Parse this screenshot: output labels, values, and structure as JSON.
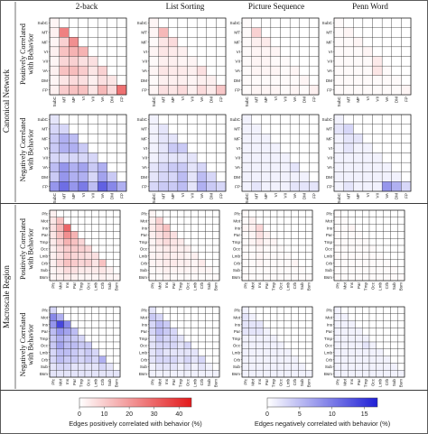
{
  "columns": [
    "2-back",
    "List Sorting",
    "Picture Sequence",
    "Penn Word"
  ],
  "groups": [
    "Canonical Network",
    "Macroscale Region"
  ],
  "row_labels": [
    "Positively Correlated with Behavior",
    "Negatively Correlated with Behavior"
  ],
  "network_labels": [
    "SubC",
    "MT",
    "MF",
    "VI",
    "VII",
    "VA",
    "DM",
    "FP"
  ],
  "region_labels": [
    "Pfc",
    "Mot",
    "Ins",
    "Par",
    "Tmp",
    "Occ",
    "Lmb",
    "Crb",
    "Sub",
    "Bsm"
  ],
  "colors": {
    "positive": "#e31a1c",
    "negative": "#1f1fd6"
  },
  "colorbars": {
    "positive": {
      "label": "Edges positively correlated with behavior (%)",
      "ticks": [
        0,
        10,
        20,
        30,
        40
      ],
      "max": 45
    },
    "negative": {
      "label": "Edges negatively correlated with behavior (%)",
      "ticks": [
        0,
        5,
        10,
        15
      ],
      "max": 17
    }
  },
  "chart_data": {
    "type": "heatmap",
    "description": "Lower-triangular matrices of the percent of edges between each pair of networks/regions correlated with behavior; values approximate.",
    "panels": [
      {
        "group": "Canonical Network",
        "sign": "positive",
        "task": "2-back",
        "matrix": [
          [
            2
          ],
          [
            3,
            25
          ],
          [
            2,
            9,
            22
          ],
          [
            3,
            12,
            15,
            15
          ],
          [
            2,
            8,
            9,
            6,
            6
          ],
          [
            3,
            12,
            13,
            10,
            5,
            9
          ],
          [
            2,
            5,
            7,
            6,
            3,
            6,
            5
          ],
          [
            3,
            10,
            12,
            12,
            5,
            14,
            7,
            28
          ]
        ]
      },
      {
        "group": "Canonical Network",
        "sign": "positive",
        "task": "List Sorting",
        "matrix": [
          [
            2
          ],
          [
            2,
            14
          ],
          [
            1,
            5,
            7
          ],
          [
            2,
            5,
            4,
            3
          ],
          [
            1,
            3,
            3,
            2,
            2
          ],
          [
            2,
            5,
            4,
            4,
            3,
            6
          ],
          [
            1,
            3,
            3,
            3,
            2,
            3,
            3
          ],
          [
            2,
            6,
            5,
            7,
            3,
            7,
            4,
            11
          ]
        ]
      },
      {
        "group": "Canonical Network",
        "sign": "positive",
        "task": "Picture Sequence",
        "matrix": [
          [
            1
          ],
          [
            1,
            9
          ],
          [
            1,
            3,
            4
          ],
          [
            1,
            2,
            2,
            2
          ],
          [
            1,
            2,
            2,
            1,
            1
          ],
          [
            1,
            2,
            2,
            2,
            1,
            2
          ],
          [
            1,
            1,
            1,
            1,
            1,
            1,
            2
          ],
          [
            1,
            2,
            2,
            2,
            1,
            2,
            1,
            3
          ]
        ]
      },
      {
        "group": "Canonical Network",
        "sign": "positive",
        "task": "Penn Word",
        "matrix": [
          [
            1
          ],
          [
            1,
            2
          ],
          [
            1,
            1,
            2
          ],
          [
            1,
            1,
            1,
            2
          ],
          [
            1,
            1,
            1,
            1,
            4
          ],
          [
            1,
            1,
            1,
            1,
            5,
            1
          ],
          [
            1,
            1,
            1,
            1,
            1,
            1,
            1
          ],
          [
            1,
            1,
            1,
            1,
            1,
            1,
            1,
            2
          ]
        ]
      },
      {
        "group": "Canonical Network",
        "sign": "negative",
        "task": "2-back",
        "matrix": [
          [
            2
          ],
          [
            3,
            3
          ],
          [
            4,
            6,
            5
          ],
          [
            4,
            6,
            6,
            4
          ],
          [
            3,
            3,
            3,
            3,
            3
          ],
          [
            5,
            8,
            6,
            7,
            4,
            6
          ],
          [
            4,
            8,
            6,
            6,
            3,
            7,
            4
          ],
          [
            8,
            11,
            8,
            10,
            5,
            12,
            9,
            6
          ]
        ]
      },
      {
        "group": "Canonical Network",
        "sign": "negative",
        "task": "List Sorting",
        "matrix": [
          [
            1
          ],
          [
            1,
            2
          ],
          [
            1,
            2,
            2
          ],
          [
            1,
            2,
            4,
            4
          ],
          [
            1,
            2,
            2,
            2,
            2
          ],
          [
            2,
            3,
            4,
            4,
            2,
            3
          ],
          [
            2,
            3,
            3,
            5,
            2,
            5,
            3
          ],
          [
            3,
            4,
            4,
            5,
            2,
            6,
            4,
            3
          ]
        ]
      },
      {
        "group": "Canonical Network",
        "sign": "negative",
        "task": "Picture Sequence",
        "matrix": [
          [
            1
          ],
          [
            1,
            1
          ],
          [
            1,
            1,
            1
          ],
          [
            1,
            1,
            1,
            1
          ],
          [
            1,
            1,
            1,
            1,
            1
          ],
          [
            1,
            1,
            1,
            1,
            1,
            2
          ],
          [
            1,
            1,
            1,
            1,
            1,
            1,
            1
          ],
          [
            1,
            2,
            1,
            1,
            1,
            2,
            2,
            2
          ]
        ]
      },
      {
        "group": "Canonical Network",
        "sign": "negative",
        "task": "Penn Word",
        "matrix": [
          [
            1
          ],
          [
            2,
            3
          ],
          [
            1,
            2,
            2
          ],
          [
            1,
            2,
            1,
            1
          ],
          [
            1,
            1,
            1,
            1,
            1
          ],
          [
            1,
            1,
            1,
            1,
            1,
            1
          ],
          [
            1,
            1,
            1,
            1,
            1,
            1,
            1
          ],
          [
            1,
            2,
            1,
            1,
            1,
            8,
            6,
            3
          ]
        ]
      },
      {
        "group": "Macroscale Region",
        "sign": "positive",
        "task": "2-back",
        "matrix": [
          [
            3
          ],
          [
            5,
            12
          ],
          [
            6,
            14,
            30
          ],
          [
            5,
            12,
            22,
            15
          ],
          [
            4,
            9,
            15,
            12,
            8
          ],
          [
            3,
            7,
            10,
            10,
            9,
            8
          ],
          [
            3,
            6,
            10,
            8,
            7,
            6,
            6
          ],
          [
            3,
            8,
            12,
            10,
            8,
            9,
            5,
            12
          ],
          [
            2,
            4,
            7,
            6,
            4,
            4,
            4,
            5,
            3
          ],
          [
            2,
            3,
            4,
            3,
            2,
            2,
            2,
            3,
            2,
            2
          ]
        ]
      },
      {
        "group": "Macroscale Region",
        "sign": "positive",
        "task": "List Sorting",
        "matrix": [
          [
            2
          ],
          [
            3,
            9
          ],
          [
            4,
            8,
            12
          ],
          [
            3,
            6,
            9,
            6
          ],
          [
            2,
            5,
            7,
            5,
            4
          ],
          [
            2,
            3,
            4,
            4,
            3,
            3
          ],
          [
            2,
            3,
            4,
            3,
            3,
            2,
            3
          ],
          [
            2,
            3,
            4,
            4,
            3,
            3,
            2,
            4
          ],
          [
            1,
            2,
            3,
            2,
            2,
            2,
            2,
            2,
            2
          ],
          [
            1,
            1,
            2,
            1,
            1,
            1,
            1,
            1,
            1,
            1
          ]
        ]
      },
      {
        "group": "Macroscale Region",
        "sign": "positive",
        "task": "Picture Sequence",
        "matrix": [
          [
            1
          ],
          [
            1,
            3
          ],
          [
            2,
            3,
            8
          ],
          [
            1,
            2,
            6,
            3
          ],
          [
            1,
            2,
            4,
            2,
            2
          ],
          [
            1,
            1,
            2,
            1,
            1,
            1
          ],
          [
            1,
            1,
            2,
            1,
            1,
            1,
            1
          ],
          [
            1,
            1,
            2,
            1,
            1,
            1,
            1,
            2
          ],
          [
            1,
            1,
            1,
            1,
            1,
            1,
            1,
            1,
            1
          ],
          [
            1,
            1,
            1,
            1,
            1,
            1,
            1,
            1,
            1,
            1
          ]
        ]
      },
      {
        "group": "Macroscale Region",
        "sign": "positive",
        "task": "Penn Word",
        "matrix": [
          [
            1
          ],
          [
            1,
            1
          ],
          [
            1,
            1,
            2
          ],
          [
            1,
            1,
            1,
            1
          ],
          [
            1,
            1,
            1,
            1,
            1
          ],
          [
            1,
            1,
            1,
            1,
            1,
            1
          ],
          [
            1,
            1,
            1,
            1,
            1,
            1,
            1
          ],
          [
            1,
            1,
            1,
            1,
            1,
            1,
            1,
            1
          ],
          [
            1,
            1,
            1,
            1,
            1,
            1,
            1,
            1,
            1
          ],
          [
            1,
            1,
            1,
            1,
            1,
            1,
            1,
            1,
            1,
            1
          ]
        ]
      },
      {
        "group": "Macroscale Region",
        "sign": "negative",
        "task": "2-back",
        "matrix": [
          [
            3
          ],
          [
            9,
            6
          ],
          [
            8,
            14,
            9
          ],
          [
            5,
            8,
            7,
            5
          ],
          [
            4,
            6,
            5,
            4,
            3
          ],
          [
            4,
            7,
            5,
            5,
            4,
            4
          ],
          [
            3,
            5,
            5,
            4,
            3,
            4,
            3
          ],
          [
            3,
            5,
            4,
            4,
            3,
            4,
            3,
            6
          ],
          [
            2,
            3,
            3,
            2,
            2,
            2,
            2,
            3,
            2
          ],
          [
            2,
            2,
            2,
            2,
            2,
            2,
            2,
            2,
            2,
            2
          ]
        ]
      },
      {
        "group": "Macroscale Region",
        "sign": "negative",
        "task": "List Sorting",
        "matrix": [
          [
            2
          ],
          [
            4,
            3
          ],
          [
            3,
            5,
            4
          ],
          [
            3,
            5,
            4,
            3
          ],
          [
            2,
            4,
            3,
            3,
            2
          ],
          [
            2,
            3,
            3,
            3,
            2,
            3
          ],
          [
            2,
            3,
            2,
            2,
            2,
            2,
            2
          ],
          [
            2,
            3,
            3,
            3,
            2,
            3,
            2,
            3
          ],
          [
            1,
            2,
            2,
            2,
            1,
            2,
            1,
            2,
            1
          ],
          [
            1,
            1,
            1,
            1,
            1,
            1,
            1,
            1,
            1,
            1
          ]
        ]
      },
      {
        "group": "Macroscale Region",
        "sign": "negative",
        "task": "Picture Sequence",
        "matrix": [
          [
            1
          ],
          [
            2,
            1
          ],
          [
            2,
            2,
            2
          ],
          [
            2,
            2,
            2,
            1
          ],
          [
            1,
            1,
            1,
            1,
            1
          ],
          [
            1,
            1,
            1,
            1,
            1,
            1
          ],
          [
            1,
            1,
            1,
            1,
            1,
            1,
            1
          ],
          [
            1,
            1,
            1,
            1,
            1,
            1,
            1,
            1
          ],
          [
            1,
            1,
            1,
            1,
            1,
            1,
            1,
            1,
            1
          ],
          [
            1,
            1,
            1,
            1,
            1,
            1,
            1,
            1,
            1,
            1
          ]
        ]
      },
      {
        "group": "Macroscale Region",
        "sign": "negative",
        "task": "Penn Word",
        "matrix": [
          [
            1
          ],
          [
            1,
            1
          ],
          [
            1,
            1,
            1
          ],
          [
            1,
            1,
            1,
            1
          ],
          [
            1,
            1,
            1,
            1,
            1
          ],
          [
            1,
            1,
            1,
            1,
            2,
            1
          ],
          [
            1,
            1,
            1,
            1,
            1,
            1,
            1
          ],
          [
            1,
            1,
            1,
            1,
            1,
            1,
            1,
            1
          ],
          [
            1,
            1,
            1,
            1,
            1,
            1,
            1,
            1,
            1
          ],
          [
            1,
            1,
            1,
            1,
            1,
            1,
            1,
            1,
            1,
            1
          ]
        ]
      }
    ]
  }
}
